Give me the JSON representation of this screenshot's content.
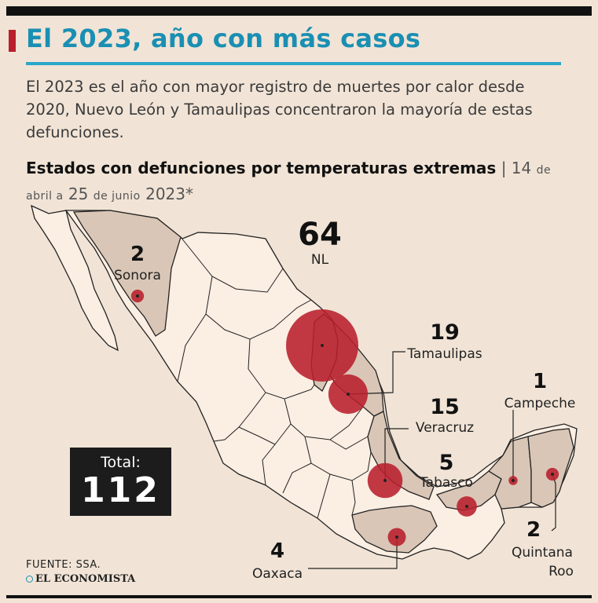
{
  "header": {
    "title": "El 2023, año con más casos",
    "lead": "El 2023 es el año con mayor registro de muertes por calor desde 2020, Nuevo León y Tamaulipas concentraron la mayoría de estas defunciones."
  },
  "subtitle": {
    "bold": "Estados con defunciones por temperaturas extremas",
    "sep": " | ",
    "range_start": "14",
    "month_start": "de abril a",
    "range_end": "25",
    "month_end": "de junio",
    "year": "2023*"
  },
  "states": [
    {
      "id": "nl",
      "name": "NL",
      "deaths": 64
    },
    {
      "id": "tamaulipas",
      "name": "Tamaulipas",
      "deaths": 19
    },
    {
      "id": "veracruz",
      "name": "Veracruz",
      "deaths": 15
    },
    {
      "id": "tabasco",
      "name": "Tabasco",
      "deaths": 5
    },
    {
      "id": "oaxaca",
      "name": "Oaxaca",
      "deaths": 4
    },
    {
      "id": "sonora",
      "name": "Sonora",
      "deaths": 2
    },
    {
      "id": "quintana_roo",
      "name": "Quintana Roo",
      "name_line1": "Quintana",
      "name_line2": "Roo",
      "deaths": 2
    },
    {
      "id": "campeche",
      "name": "Campeche",
      "deaths": 1
    }
  ],
  "total": {
    "label": "Total:",
    "value": "112"
  },
  "footer": {
    "source": "FUENTE:  SSA.",
    "logo_text": "EL ECONOMISTA"
  },
  "colors": {
    "background": "#f1e4d6",
    "title": "#1a8fb3",
    "bubble": "#b81f2c",
    "state_highlight": "#d9c6b6",
    "state_base": "#fbeee3",
    "border": "#222222"
  }
}
